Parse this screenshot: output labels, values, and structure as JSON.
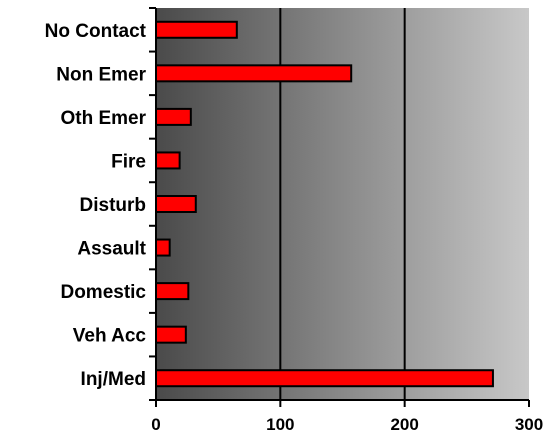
{
  "chart_data": {
    "type": "bar",
    "orientation": "horizontal",
    "categories": [
      "No Contact",
      "Non Emer",
      "Oth Emer",
      "Fire",
      "Disturb",
      "Assault",
      "Domestic",
      "Veh Acc",
      "Inj/Med"
    ],
    "values": [
      65,
      157,
      28,
      19,
      32,
      11,
      26,
      24,
      271
    ],
    "xlim": [
      0,
      300
    ],
    "xticks": [
      0,
      100,
      200,
      300
    ],
    "tick_labels": [
      "0",
      "100",
      "200",
      "300"
    ],
    "title": "",
    "xlabel": "",
    "ylabel": "",
    "grid": "vertical major gridlines",
    "bar_color": "#ff0000",
    "bar_edge_color": "#000000",
    "plot_background": "gradient dark gray (#4a4a4a) to light gray (#c8c8c8), left to right"
  }
}
